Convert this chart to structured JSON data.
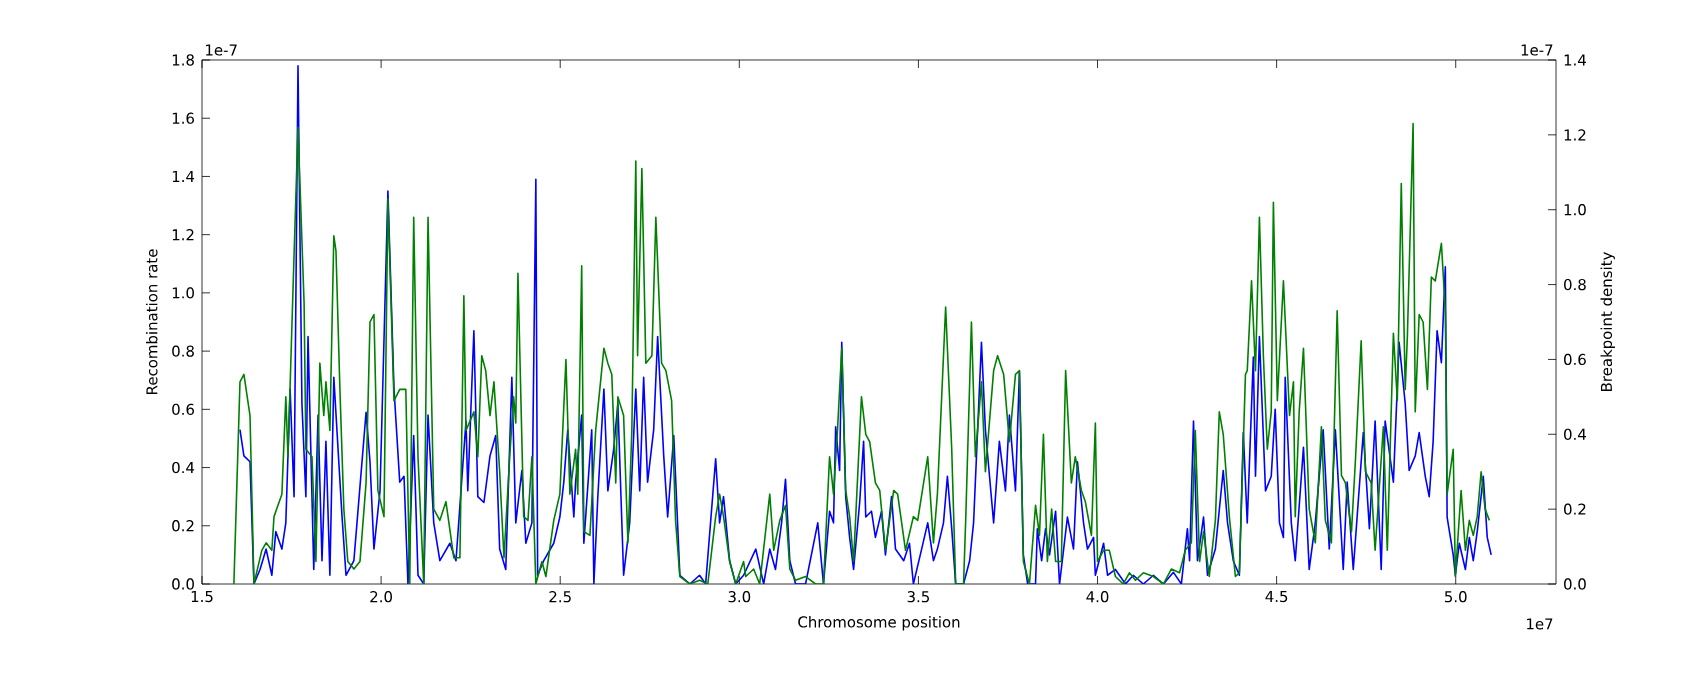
{
  "chart_data": {
    "type": "line",
    "xlabel": "Chromosome position",
    "ylabel": "Recombination rate",
    "y2label": "Breakpoint density",
    "annotations": [
      "1e-7",
      "1e-7",
      "1e7"
    ],
    "xlim": [
      1.5,
      5.28
    ],
    "xticks": [
      {
        "value": 1.5,
        "label": "1.5"
      },
      {
        "value": 2.0,
        "label": "2.0"
      },
      {
        "value": 2.5,
        "label": "2.5"
      },
      {
        "value": 3.0,
        "label": "3.0"
      },
      {
        "value": 3.5,
        "label": "3.5"
      },
      {
        "value": 4.0,
        "label": "4.0"
      },
      {
        "value": 4.5,
        "label": "4.5"
      },
      {
        "value": 5.0,
        "label": "5.0"
      }
    ],
    "ylim": [
      0,
      1.8
    ],
    "yticks": [
      {
        "value": 0,
        "label": "0.0"
      },
      {
        "value": 0.2,
        "label": "0.2"
      },
      {
        "value": 0.4,
        "label": "0.4"
      },
      {
        "value": 0.6,
        "label": "0.6"
      },
      {
        "value": 0.8,
        "label": "0.8"
      },
      {
        "value": 1.0,
        "label": "1.0"
      },
      {
        "value": 1.2,
        "label": "1.2"
      },
      {
        "value": 1.4,
        "label": "1.4"
      },
      {
        "value": 1.6,
        "label": "1.6"
      },
      {
        "value": 1.8,
        "label": "1.8"
      }
    ],
    "y2lim": [
      0,
      1.4
    ],
    "y2ticks": [
      {
        "value": 0,
        "label": "0.0"
      },
      {
        "value": 0.2,
        "label": "0.2"
      },
      {
        "value": 0.4,
        "label": "0.4"
      },
      {
        "value": 0.6,
        "label": "0.6"
      },
      {
        "value": 0.8,
        "label": "0.8"
      },
      {
        "value": 1.0,
        "label": "1.0"
      },
      {
        "value": 1.2,
        "label": "1.2"
      },
      {
        "value": 1.4,
        "label": "1.4"
      }
    ],
    "grid": false,
    "marker": "none",
    "line_style": "solid",
    "series": [
      {
        "color": "#0000ff",
        "axis": "y",
        "x": [
          1.606,
          1.617,
          1.634,
          1.645,
          1.662,
          1.679,
          1.695,
          1.706,
          1.723,
          1.734,
          1.746,
          1.757,
          1.768,
          1.779,
          1.79,
          1.796,
          1.812,
          1.824,
          1.835,
          1.846,
          1.857,
          1.868,
          1.891,
          1.902,
          1.924,
          1.958,
          1.969,
          1.98,
          1.997,
          2.019,
          2.036,
          2.052,
          2.064,
          2.075,
          2.091,
          2.103,
          2.119,
          2.131,
          2.147,
          2.164,
          2.192,
          2.209,
          2.237,
          2.242,
          2.259,
          2.27,
          2.287,
          2.304,
          2.32,
          2.331,
          2.348,
          2.365,
          2.376,
          2.393,
          2.404,
          2.421,
          2.432,
          2.437,
          2.454,
          2.482,
          2.499,
          2.51,
          2.521,
          2.538,
          2.543,
          2.56,
          2.566,
          2.588,
          2.594,
          2.605,
          2.622,
          2.633,
          2.649,
          2.661,
          2.677,
          2.694,
          2.711,
          2.722,
          2.733,
          2.744,
          2.761,
          2.772,
          2.789,
          2.8,
          2.817,
          2.834,
          2.862,
          2.889,
          2.906,
          2.934,
          2.945,
          2.956,
          2.973,
          2.99,
          3.012,
          3.046,
          3.068,
          3.085,
          3.101,
          3.118,
          3.129,
          3.141,
          3.157,
          3.185,
          3.219,
          3.235,
          3.252,
          3.263,
          3.269,
          3.28,
          3.286,
          3.297,
          3.308,
          3.319,
          3.336,
          3.347,
          3.353,
          3.369,
          3.38,
          3.397,
          3.408,
          3.425,
          3.436,
          3.459,
          3.475,
          3.486,
          3.509,
          3.526,
          3.542,
          3.553,
          3.57,
          3.581,
          3.593,
          3.604,
          3.626,
          3.643,
          3.654,
          3.676,
          3.687,
          3.71,
          3.726,
          3.743,
          3.754,
          3.771,
          3.782,
          3.793,
          3.805,
          3.827,
          3.832,
          3.844,
          3.855,
          3.866,
          3.883,
          3.894,
          3.916,
          3.933,
          3.944,
          3.961,
          3.972,
          3.989,
          3.994,
          4.017,
          4.028,
          4.05,
          4.078,
          4.1,
          4.128,
          4.156,
          4.184,
          4.212,
          4.234,
          4.251,
          4.257,
          4.268,
          4.279,
          4.296,
          4.307,
          4.329,
          4.351,
          4.363,
          4.379,
          4.396,
          4.407,
          4.418,
          4.435,
          4.441,
          4.452,
          4.469,
          4.485,
          4.496,
          4.508,
          4.519,
          4.524,
          4.541,
          4.552,
          4.575,
          4.591,
          4.608,
          4.63,
          4.647,
          4.664,
          4.686,
          4.697,
          4.714,
          4.742,
          4.759,
          4.775,
          4.792,
          4.803,
          4.826,
          4.842,
          4.859,
          4.87,
          4.887,
          4.898,
          4.915,
          4.926,
          4.937,
          4.948,
          4.96,
          4.971,
          4.976,
          4.993,
          4.999,
          5.01,
          5.027,
          5.038,
          5.049,
          5.06,
          5.077,
          5.088,
          5.099
        ],
        "values": [
          0.53,
          0.44,
          0.42,
          0,
          0.05,
          0.12,
          0.03,
          0.18,
          0.12,
          0.21,
          0.67,
          0.3,
          1.78,
          0.62,
          0.3,
          0.85,
          0.05,
          0.58,
          0.08,
          0.49,
          0.03,
          0.71,
          0.23,
          0.03,
          0.08,
          0.59,
          0.42,
          0.12,
          0.32,
          1.35,
          0.67,
          0.35,
          0.37,
          0,
          0.51,
          0.03,
          0,
          0.58,
          0.21,
          0.08,
          0.14,
          0.08,
          0.56,
          0.32,
          0.87,
          0.3,
          0.28,
          0.44,
          0.51,
          0.12,
          0.05,
          0.71,
          0.21,
          0.39,
          0.14,
          0.21,
          1.39,
          0.03,
          0.08,
          0.14,
          0.23,
          0.35,
          0.53,
          0.23,
          0.35,
          0.58,
          0.14,
          0.53,
          0,
          0.3,
          0.67,
          0.32,
          0.46,
          0.62,
          0.03,
          0.21,
          0.67,
          0.32,
          0.71,
          0.35,
          0.53,
          0.85,
          0.44,
          0.23,
          0.51,
          0.03,
          0,
          0.03,
          0,
          0.43,
          0.21,
          0.3,
          0.08,
          0,
          0.03,
          0.12,
          0,
          0.12,
          0.05,
          0.21,
          0.36,
          0.08,
          0,
          0,
          0.21,
          0,
          0.25,
          0.21,
          0.54,
          0.39,
          0.83,
          0.3,
          0.16,
          0.05,
          0.28,
          0.49,
          0.23,
          0.25,
          0.16,
          0.25,
          0.1,
          0.3,
          0.12,
          0.08,
          0.14,
          0,
          0.12,
          0.21,
          0.08,
          0.12,
          0.21,
          0.37,
          0.19,
          0,
          0,
          0.08,
          0.21,
          0.83,
          0.53,
          0.21,
          0.49,
          0.32,
          0.58,
          0.32,
          0.73,
          0.1,
          0,
          0,
          0.19,
          0.08,
          0.19,
          0.1,
          0.25,
          0,
          0.23,
          0.12,
          0.42,
          0.21,
          0.12,
          0.16,
          0.03,
          0.14,
          0.03,
          0.05,
          0,
          0.03,
          0,
          0.03,
          0,
          0.04,
          0,
          0.19,
          0.08,
          0.56,
          0.08,
          0.23,
          0.03,
          0.12,
          0.39,
          0.21,
          0.08,
          0.03,
          0.52,
          0.21,
          0.78,
          0.37,
          0.85,
          0.32,
          0.37,
          0.6,
          0.21,
          0.16,
          0.71,
          0.21,
          0.08,
          0.47,
          0.05,
          0.21,
          0.53,
          0.12,
          0.53,
          0.05,
          0.35,
          0.05,
          0.52,
          0.19,
          0.56,
          0.05,
          0.56,
          0.35,
          0.83,
          0.62,
          0.39,
          0.44,
          0.52,
          0.37,
          0.3,
          0.49,
          0.87,
          0.76,
          1.09,
          0.23,
          0.1,
          0.03,
          0.14,
          0.05,
          0.16,
          0.08,
          0.18,
          0.37,
          0.16,
          0.1
        ]
      },
      {
        "color": "#008000",
        "axis": "y2",
        "x": [
          1.589,
          1.606,
          1.617,
          1.634,
          1.645,
          1.667,
          1.679,
          1.695,
          1.701,
          1.723,
          1.734,
          1.74,
          1.757,
          1.768,
          1.785,
          1.79,
          1.807,
          1.818,
          1.829,
          1.84,
          1.846,
          1.857,
          1.868,
          1.874,
          1.885,
          1.896,
          1.907,
          1.924,
          1.941,
          1.958,
          1.969,
          1.98,
          1.991,
          2.008,
          2.019,
          2.036,
          2.052,
          2.069,
          2.08,
          2.091,
          2.103,
          2.119,
          2.131,
          2.147,
          2.164,
          2.181,
          2.203,
          2.22,
          2.231,
          2.237,
          2.259,
          2.27,
          2.281,
          2.292,
          2.304,
          2.315,
          2.331,
          2.343,
          2.359,
          2.37,
          2.376,
          2.382,
          2.398,
          2.41,
          2.421,
          2.432,
          2.449,
          2.46,
          2.482,
          2.499,
          2.516,
          2.527,
          2.543,
          2.549,
          2.56,
          2.566,
          2.583,
          2.599,
          2.622,
          2.633,
          2.644,
          2.655,
          2.661,
          2.677,
          2.689,
          2.7,
          2.711,
          2.716,
          2.728,
          2.739,
          2.756,
          2.767,
          2.783,
          2.795,
          2.811,
          2.822,
          2.834,
          2.862,
          2.889,
          2.912,
          2.934,
          2.945,
          2.956,
          2.973,
          2.99,
          3.012,
          3.018,
          3.04,
          3.057,
          3.085,
          3.096,
          3.113,
          3.129,
          3.141,
          3.157,
          3.185,
          3.213,
          3.235,
          3.252,
          3.263,
          3.274,
          3.286,
          3.297,
          3.308,
          3.319,
          3.341,
          3.353,
          3.364,
          3.38,
          3.392,
          3.408,
          3.431,
          3.442,
          3.464,
          3.486,
          3.498,
          3.526,
          3.542,
          3.553,
          3.576,
          3.593,
          3.604,
          3.626,
          3.632,
          3.648,
          3.659,
          3.676,
          3.687,
          3.71,
          3.721,
          3.738,
          3.754,
          3.771,
          3.782,
          3.793,
          3.81,
          3.827,
          3.838,
          3.849,
          3.86,
          3.872,
          3.883,
          3.899,
          3.911,
          3.927,
          3.938,
          3.955,
          3.966,
          3.983,
          3.994,
          4.0,
          4.017,
          4.033,
          4.05,
          4.072,
          4.089,
          4.106,
          4.128,
          4.156,
          4.184,
          4.206,
          4.229,
          4.245,
          4.262,
          4.273,
          4.285,
          4.296,
          4.312,
          4.329,
          4.34,
          4.351,
          4.368,
          4.385,
          4.396,
          4.413,
          4.418,
          4.43,
          4.441,
          4.452,
          4.463,
          4.474,
          4.485,
          4.491,
          4.502,
          4.519,
          4.536,
          4.547,
          4.552,
          4.563,
          4.575,
          4.591,
          4.608,
          4.625,
          4.636,
          4.653,
          4.669,
          4.681,
          4.692,
          4.709,
          4.72,
          4.736,
          4.748,
          4.764,
          4.775,
          4.798,
          4.809,
          4.826,
          4.837,
          4.848,
          4.859,
          4.865,
          4.881,
          4.887,
          4.898,
          4.909,
          4.921,
          4.932,
          4.943,
          4.96,
          4.971,
          4.976,
          4.993,
          4.999,
          5.015,
          5.027,
          5.038,
          5.049,
          5.06,
          5.071,
          5.082,
          5.094
        ],
        "values": [
          0,
          0.54,
          0.56,
          0.45,
          0,
          0.09,
          0.11,
          0.09,
          0.18,
          0.24,
          0.5,
          0.34,
          0.88,
          1.22,
          0.75,
          0.36,
          0.34,
          0.06,
          0.59,
          0.45,
          0.54,
          0.41,
          0.93,
          0.89,
          0.52,
          0.2,
          0.06,
          0.04,
          0.06,
          0.27,
          0.7,
          0.72,
          0.25,
          0.18,
          1.03,
          0.49,
          0.52,
          0.52,
          0,
          0.98,
          0.34,
          0,
          0.98,
          0.2,
          0.17,
          0.22,
          0.07,
          0.07,
          0.77,
          0.41,
          0.46,
          0.34,
          0.61,
          0.57,
          0.45,
          0.54,
          0.3,
          0.07,
          0.34,
          0.5,
          0.43,
          0.83,
          0.18,
          0.17,
          0.34,
          0,
          0.06,
          0.02,
          0.17,
          0.24,
          0.6,
          0.24,
          0.36,
          0.24,
          0.85,
          0.14,
          0.13,
          0.41,
          0.63,
          0.59,
          0.56,
          0.27,
          0.5,
          0.45,
          0.11,
          0.41,
          1.13,
          0.61,
          1.11,
          0.59,
          0.61,
          0.98,
          0.59,
          0.57,
          0.49,
          0.17,
          0.02,
          0,
          0.01,
          0,
          0.18,
          0.24,
          0.18,
          0.06,
          0,
          0.06,
          0.02,
          0.04,
          0,
          0.24,
          0.09,
          0.17,
          0.21,
          0.04,
          0.01,
          0.02,
          0,
          0,
          0.34,
          0.24,
          0.41,
          0.63,
          0.25,
          0.18,
          0.06,
          0.5,
          0.4,
          0.38,
          0.27,
          0.25,
          0.09,
          0.25,
          0.24,
          0.09,
          0.18,
          0.17,
          0.34,
          0.11,
          0.24,
          0.74,
          0.36,
          0,
          0,
          0.17,
          0.7,
          0.34,
          0.54,
          0.3,
          0.57,
          0.61,
          0.56,
          0.38,
          0.56,
          0.57,
          0.06,
          0,
          0.21,
          0.13,
          0.4,
          0.06,
          0.2,
          0.06,
          0.06,
          0.57,
          0.27,
          0.34,
          0.25,
          0.22,
          0.13,
          0.43,
          0.06,
          0.09,
          0.09,
          0.02,
          0,
          0.03,
          0.01,
          0.03,
          0.02,
          0,
          0.04,
          0.03,
          0.09,
          0.11,
          0.41,
          0.06,
          0.14,
          0.02,
          0.17,
          0.46,
          0.4,
          0.18,
          0.02,
          0.03,
          0.56,
          0.57,
          0.81,
          0.57,
          0.98,
          0.61,
          0.36,
          0.46,
          1.02,
          0.49,
          0.81,
          0.45,
          0.54,
          0.18,
          0.46,
          0.63,
          0.2,
          0.11,
          0.42,
          0.17,
          0.11,
          0.73,
          0.29,
          0.27,
          0.14,
          0.33,
          0.65,
          0.3,
          0.27,
          0.09,
          0.42,
          0.09,
          0.67,
          0.49,
          1.07,
          0.52,
          0.66,
          1.23,
          0.46,
          0.72,
          0.7,
          0.52,
          0.82,
          0.81,
          0.91,
          0.73,
          0.24,
          0.36,
          0.02,
          0.25,
          0.09,
          0.17,
          0.13,
          0.18,
          0.3,
          0.2,
          0.17
        ]
      }
    ]
  }
}
